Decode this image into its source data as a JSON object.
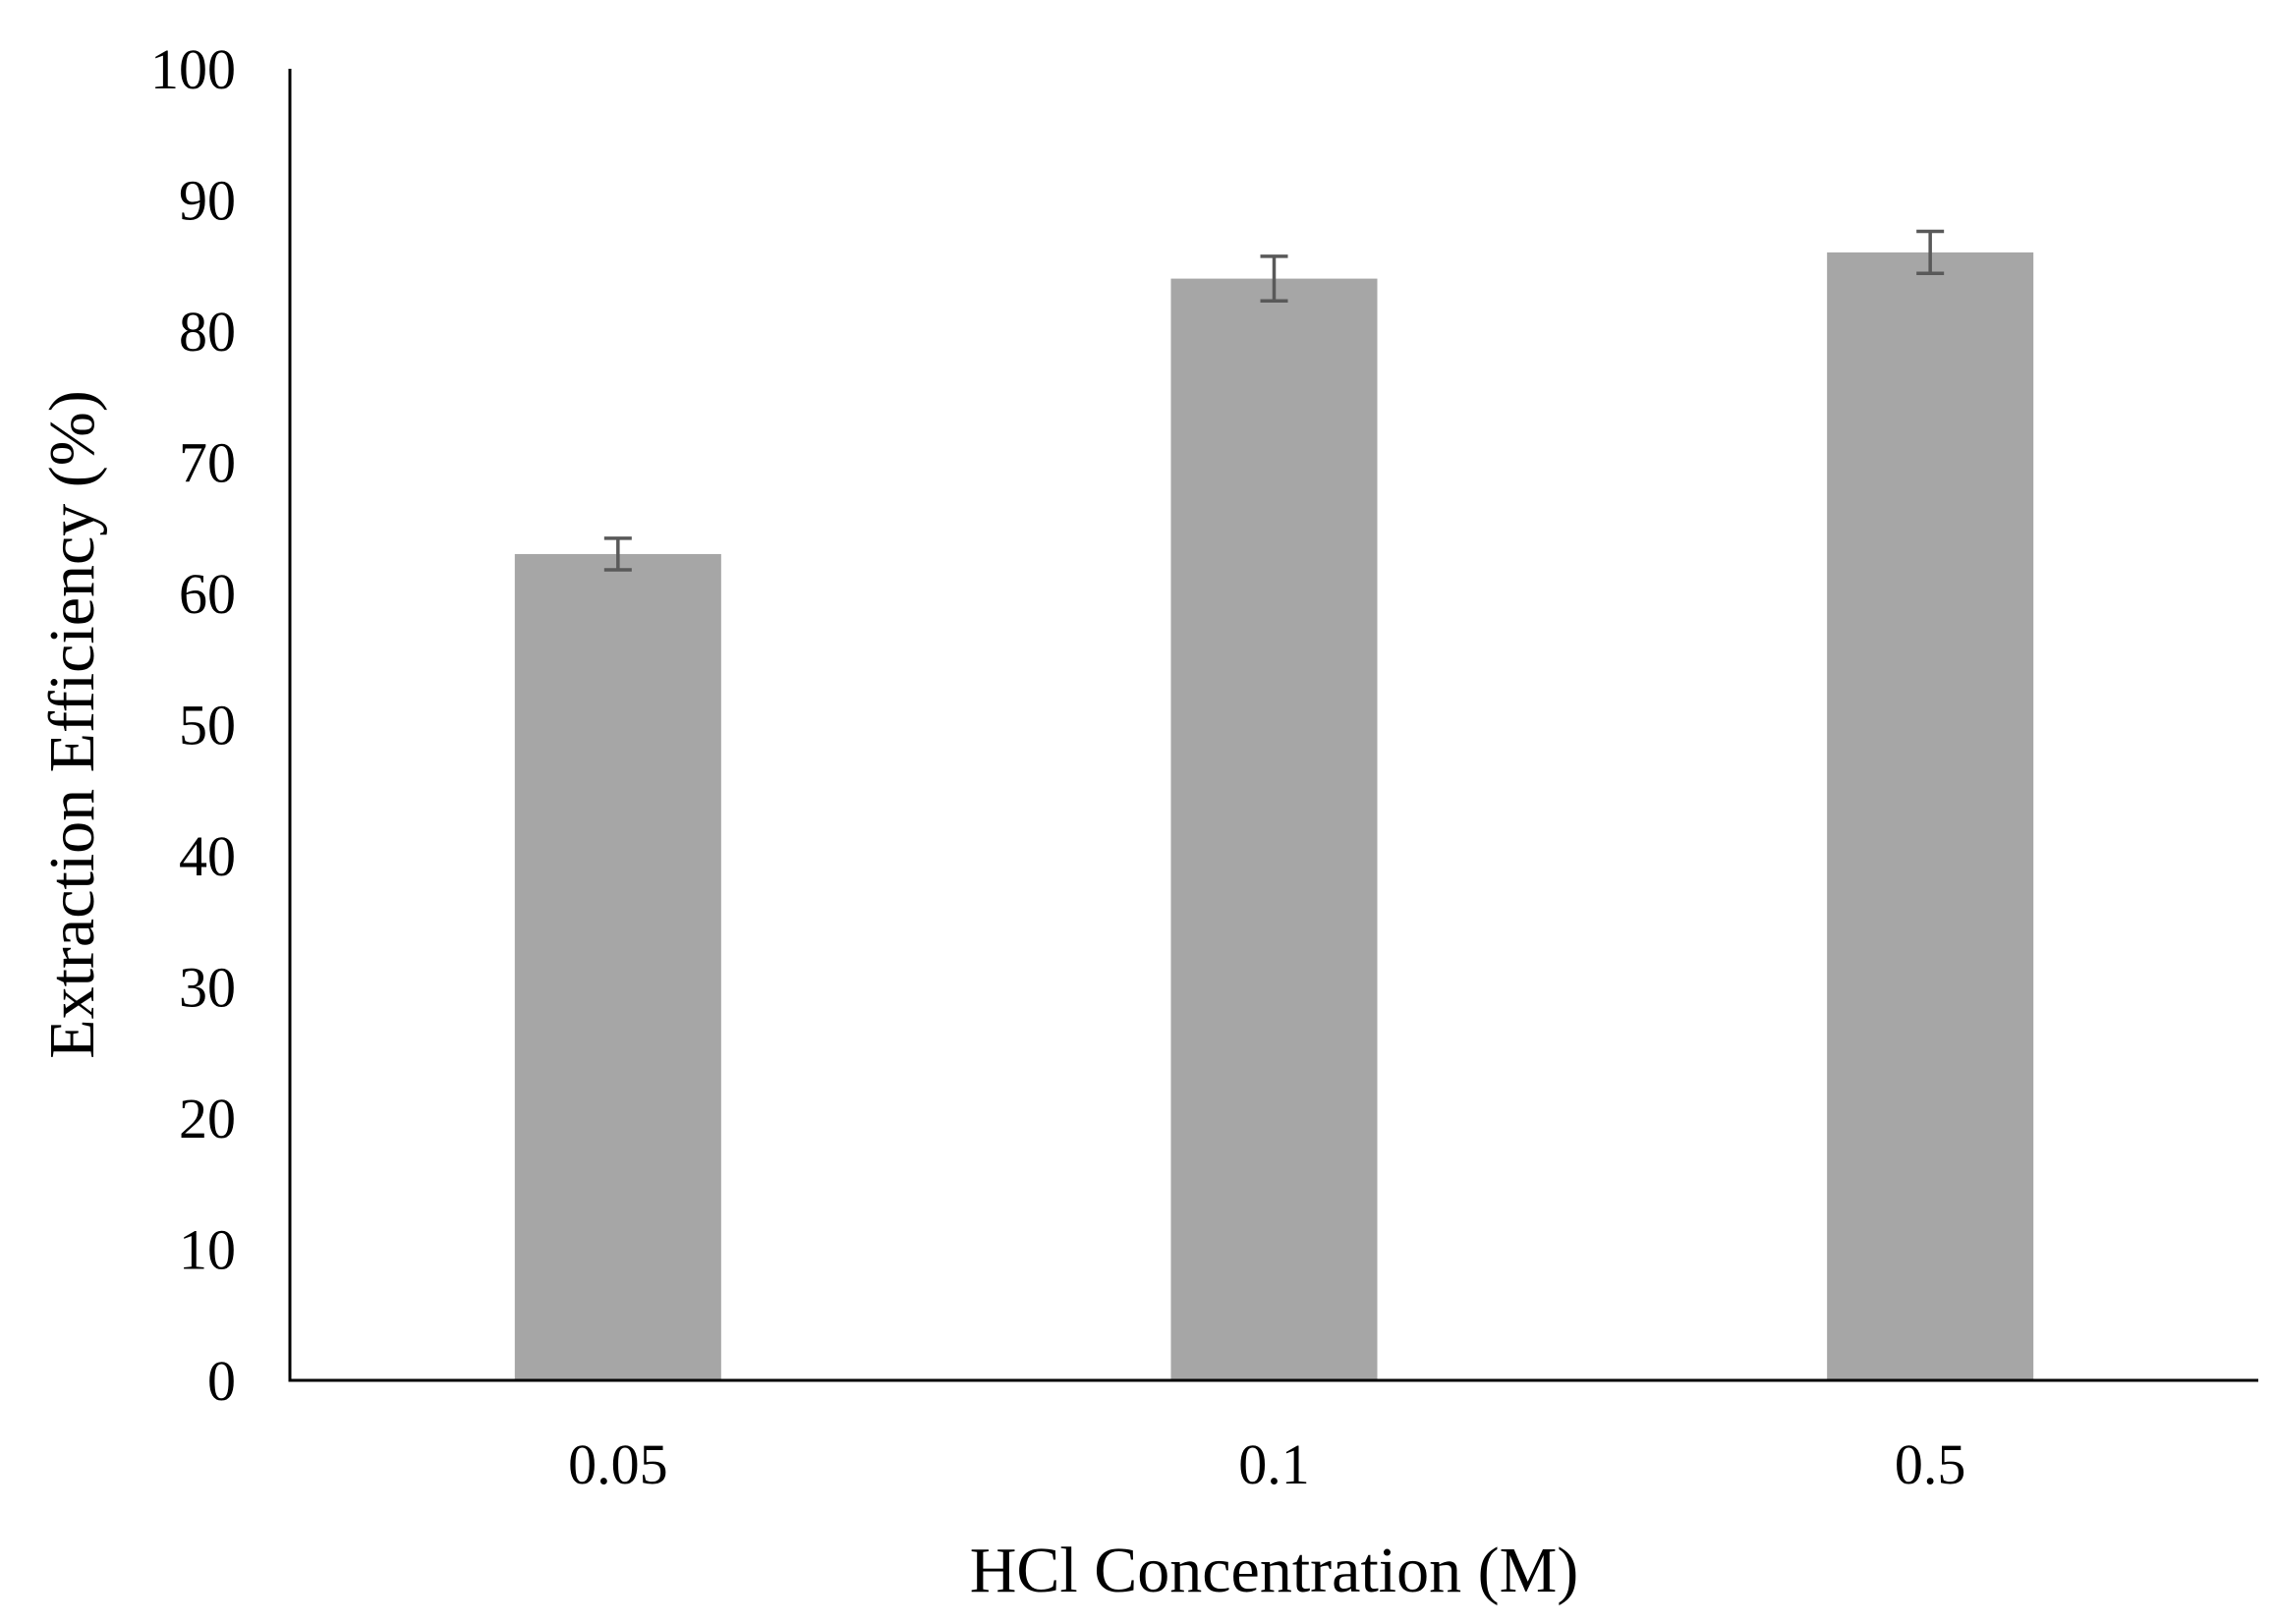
{
  "chart_data": {
    "type": "bar",
    "title": "",
    "xlabel": "HCl Concentration (M)",
    "ylabel": "Extraction Efficiency (%)",
    "categories": [
      "0.05",
      "0.1",
      "0.5"
    ],
    "values": [
      63,
      84,
      86
    ],
    "error": [
      1.2,
      1.7,
      1.6
    ],
    "ylim": [
      0,
      100
    ],
    "yticks": [
      0,
      10,
      20,
      30,
      40,
      50,
      60,
      70,
      80,
      90,
      100
    ],
    "grid": false,
    "legend": "none",
    "colors": {
      "bar": "#a6a6a6",
      "error_bar": "#595959",
      "axis": "#000000"
    }
  }
}
